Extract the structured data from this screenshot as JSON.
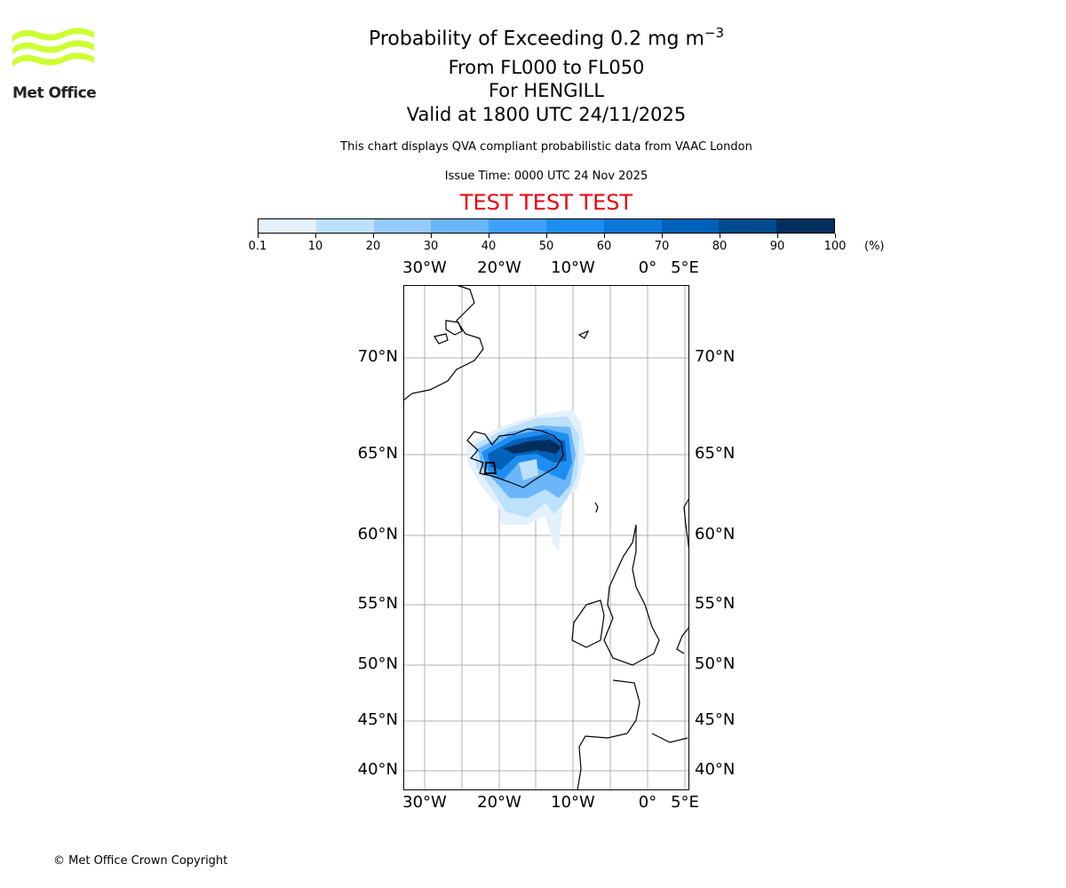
{
  "logo": {
    "text": "Met Office",
    "color": "#ccff33"
  },
  "header": {
    "title": "Probability of Exceeding 0.2 mg m",
    "title_exp": "−3",
    "levels": "From FL000 to FL050",
    "location": "For HENGILL",
    "valid": "Valid at 1800 UTC 24/11/2025",
    "note": "This chart displays QVA compliant probabilistic data from VAAC London",
    "issue": "Issue Time: 0000 UTC 24 Nov 2025",
    "test": "TEST TEST TEST"
  },
  "colorbar": {
    "ticks": [
      "0.1",
      "10",
      "20",
      "30",
      "40",
      "50",
      "60",
      "70",
      "80",
      "90",
      "100"
    ],
    "unit": "(%)",
    "colors": [
      "#e3f1fd",
      "#bde0fb",
      "#94cbfb",
      "#6bb6fb",
      "#3ea1fc",
      "#1e8df2",
      "#0e75d9",
      "#0061b9",
      "#004b8f",
      "#002f5e"
    ]
  },
  "map": {
    "lon_labels": [
      "30°W",
      "20°W",
      "10°W",
      "0°",
      "5°E"
    ],
    "lat_labels": [
      "70°N",
      "65°N",
      "60°N",
      "55°N",
      "50°N",
      "45°N",
      "40°N"
    ],
    "plume_center": "Iceland (HENGILL)"
  },
  "footer": {
    "copyright": "© Met Office Crown Copyright"
  }
}
